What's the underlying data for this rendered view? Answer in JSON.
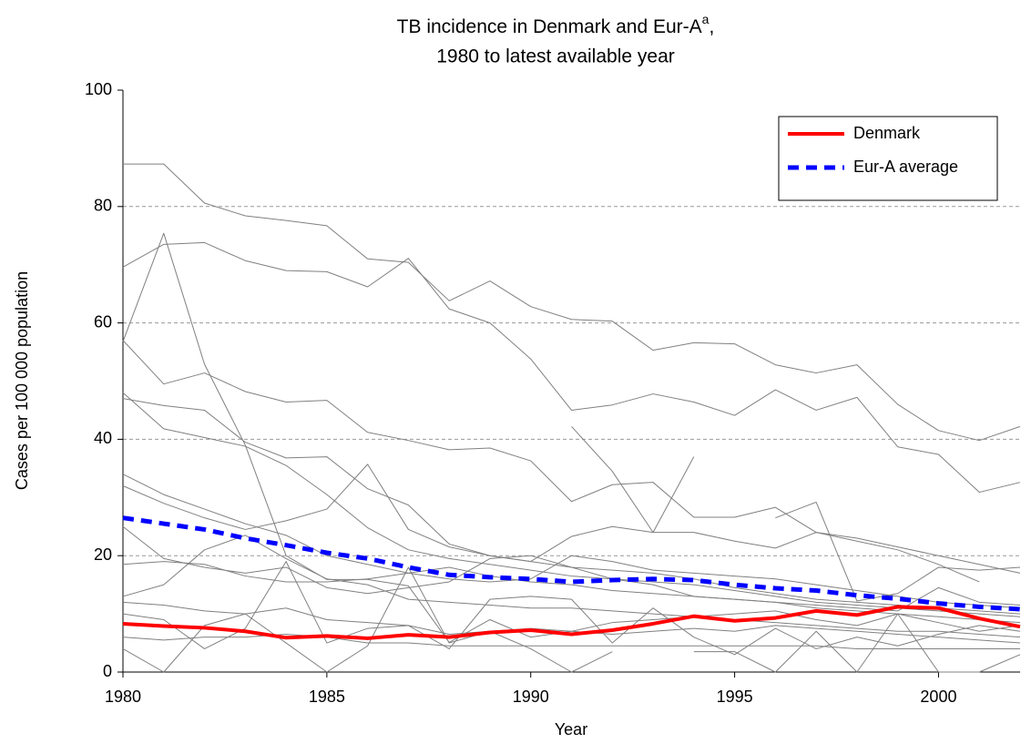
{
  "chart_data": {
    "type": "line",
    "title_line1": "TB incidence in Denmark and Eur-A",
    "title_superscript": "a",
    "title_line1_end": ",",
    "title_line2": "1980 to latest available year",
    "x_label": "Year",
    "y_label": "Cases per 100 000 population",
    "x": [
      1980,
      1981,
      1982,
      1983,
      1984,
      1985,
      1986,
      1987,
      1988,
      1989,
      1990,
      1991,
      1992,
      1993,
      1994,
      1995,
      1996,
      1997,
      1998,
      1999,
      2000,
      2001,
      2002
    ],
    "xlim": [
      1980,
      2002
    ],
    "xticks": [
      1980,
      1985,
      1990,
      1995,
      2000
    ],
    "ylim": [
      0,
      100
    ],
    "yticks": [
      0,
      20,
      40,
      60,
      80,
      100
    ],
    "grid": true,
    "legend_position": "upper right",
    "series": [
      {
        "color": "#808080",
        "values": [
          87.3,
          87.3,
          80.6,
          78.4,
          77.6,
          76.7,
          71.0,
          70.4,
          63.8,
          67.2,
          62.8,
          60.6,
          60.3,
          55.3,
          56.6,
          56.4,
          52.8,
          51.4,
          52.8,
          46.0,
          41.5,
          39.8,
          42.2
        ]
      },
      {
        "color": "#808080",
        "values": [
          69.6,
          73.5,
          73.8,
          70.7,
          69.0,
          68.8,
          66.2,
          71.1,
          62.4,
          60.0,
          53.8,
          45.0,
          45.9,
          47.8,
          46.4,
          44.1,
          48.5,
          45.0,
          47.2,
          38.7,
          37.4,
          30.9,
          32.6
        ]
      },
      {
        "color": "#808080",
        "values": [
          56.8,
          75.4,
          52.9,
          39.0,
          20.0,
          15.9,
          15.9,
          14.8,
          5.1,
          9.0,
          6.0,
          7.0,
          8.5,
          9.0,
          9.5,
          10.0,
          10.5,
          9.0,
          8.0,
          10.0,
          8.5,
          7.0,
          8.0
        ]
      },
      {
        "color": "#808080",
        "values": [
          57.0,
          49.5,
          51.4,
          48.2,
          46.4,
          46.7,
          41.2,
          39.8,
          38.2,
          38.5,
          36.3,
          29.3,
          32.2,
          32.6,
          26.6,
          26.6,
          28.3,
          24.0,
          22.5,
          21.0,
          18.5,
          15.5,
          null
        ]
      },
      {
        "color": "#808080",
        "values": [
          48.0,
          41.8,
          40.3,
          38.8,
          35.5,
          30.5,
          24.8,
          21.0,
          19.5,
          18.5,
          17.5,
          16.5,
          16.0,
          15.5,
          15.0,
          14.0,
          13.0,
          12.0,
          11.5,
          11.0,
          10.5,
          10.0,
          9.5
        ]
      },
      {
        "color": "#808080",
        "values": [
          47.0,
          45.8,
          45.0,
          39.5,
          36.8,
          37.0,
          31.5,
          28.7,
          22.0,
          20.0,
          19.0,
          18.0,
          17.5,
          17.0,
          16.0,
          14.5,
          13.5,
          12.5,
          12.0,
          11.5,
          11.0,
          10.5,
          10.0
        ]
      },
      {
        "color": "#808080",
        "values": [
          null,
          null,
          null,
          null,
          null,
          null,
          null,
          null,
          null,
          null,
          null,
          42.2,
          34.5,
          24.0,
          37.0,
          null,
          null,
          null,
          null,
          null,
          null,
          null,
          null
        ]
      },
      {
        "color": "#808080",
        "values": [
          null,
          null,
          null,
          null,
          null,
          null,
          null,
          null,
          null,
          null,
          null,
          null,
          null,
          null,
          null,
          null,
          26.5,
          29.2,
          12.2,
          13.5,
          18.0,
          17.5,
          18.0
        ]
      },
      {
        "color": "#808080",
        "values": [
          34.0,
          30.5,
          28.0,
          25.5,
          23.5,
          20.0,
          18.5,
          17.0,
          16.0,
          15.5,
          16.0,
          20.0,
          19.0,
          17.5,
          17.0,
          16.5,
          16.0,
          15.0,
          14.0,
          13.0,
          12.0,
          11.5,
          11.0
        ]
      },
      {
        "color": "#808080",
        "values": [
          32.0,
          29.0,
          26.5,
          24.5,
          26.0,
          28.0,
          35.7,
          24.5,
          21.5,
          20.0,
          19.0,
          23.3,
          25.0,
          24.0,
          24.0,
          22.5,
          21.3,
          24.0,
          23.0,
          21.5,
          20.0,
          18.5,
          17.0
        ]
      },
      {
        "color": "#808080",
        "values": [
          25.0,
          19.5,
          18.0,
          17.0,
          18.0,
          14.5,
          13.5,
          14.5,
          15.5,
          19.5,
          20.0,
          18.0,
          16.0,
          15.0,
          13.0,
          12.5,
          12.0,
          11.5,
          11.0,
          10.5,
          14.5,
          12.0,
          11.5
        ]
      },
      {
        "color": "#808080",
        "values": [
          18.5,
          19.0,
          18.5,
          16.5,
          15.5,
          15.5,
          16.0,
          17.0,
          18.0,
          16.5,
          15.5,
          15.0,
          14.0,
          13.5,
          13.0,
          12.5,
          12.0,
          11.0,
          10.5,
          10.0,
          9.5,
          9.0,
          8.5
        ]
      },
      {
        "color": "#808080",
        "values": [
          13.0,
          15.0,
          21.0,
          23.5,
          19.5,
          16.0,
          15.0,
          12.5,
          12.0,
          11.5,
          11.0,
          11.0,
          10.5,
          10.0,
          9.5,
          9.0,
          8.5,
          8.0,
          7.5,
          7.0,
          7.0,
          6.5,
          6.0
        ]
      },
      {
        "color": "#808080",
        "values": [
          12.0,
          11.5,
          10.5,
          10.0,
          11.0,
          9.0,
          8.5,
          8.0,
          6.5,
          7.0,
          7.5,
          7.0,
          6.5,
          7.0,
          7.5,
          7.0,
          8.0,
          7.5,
          7.0,
          6.5,
          6.0,
          5.5,
          5.0
        ]
      },
      {
        "color": "#808080",
        "values": [
          10.0,
          9.0,
          4.0,
          7.5,
          19.0,
          5.0,
          7.5,
          8.0,
          4.0,
          12.5,
          13.0,
          12.5,
          5.0,
          11.0,
          6.0,
          3.0,
          7.5,
          4.0,
          6.0,
          4.5,
          6.5,
          8.0,
          7.0
        ]
      },
      {
        "color": "#808080",
        "values": [
          4.0,
          0,
          8.0,
          10.0,
          5.0,
          0,
          4.5,
          18.0,
          5.0,
          7.0,
          4.0,
          0,
          3.5,
          null,
          3.5,
          3.5,
          0,
          7.0,
          0,
          10.0,
          0,
          0,
          3.0
        ]
      },
      {
        "color": "#808080",
        "values": [
          6.0,
          5.5,
          6.0,
          6.0,
          6.5,
          6.0,
          5.0,
          5.0,
          4.5,
          4.5,
          4.5,
          4.5,
          4.5,
          4.5,
          4.5,
          4.5,
          4.5,
          4.5,
          4.0,
          4.0,
          4.0,
          4.0,
          4.0
        ]
      },
      {
        "name": "Denmark",
        "color": "#ff0000",
        "width": 4,
        "dashed": false,
        "values": [
          8.3,
          7.9,
          7.6,
          7.0,
          5.9,
          6.2,
          5.8,
          6.4,
          6.0,
          6.8,
          7.2,
          6.5,
          7.2,
          8.3,
          9.6,
          8.8,
          9.3,
          10.5,
          9.8,
          11.2,
          11.0,
          9.2,
          7.8
        ]
      },
      {
        "name": "Eur-A average",
        "color": "#0000ff",
        "width": 5,
        "dashed": true,
        "values": [
          26.5,
          25.5,
          24.5,
          23.0,
          21.8,
          20.5,
          19.5,
          18.0,
          16.7,
          16.3,
          16.0,
          15.5,
          15.8,
          16.0,
          15.8,
          15.0,
          14.4,
          14.0,
          13.2,
          12.6,
          11.8,
          11.2,
          10.8
        ]
      }
    ]
  }
}
